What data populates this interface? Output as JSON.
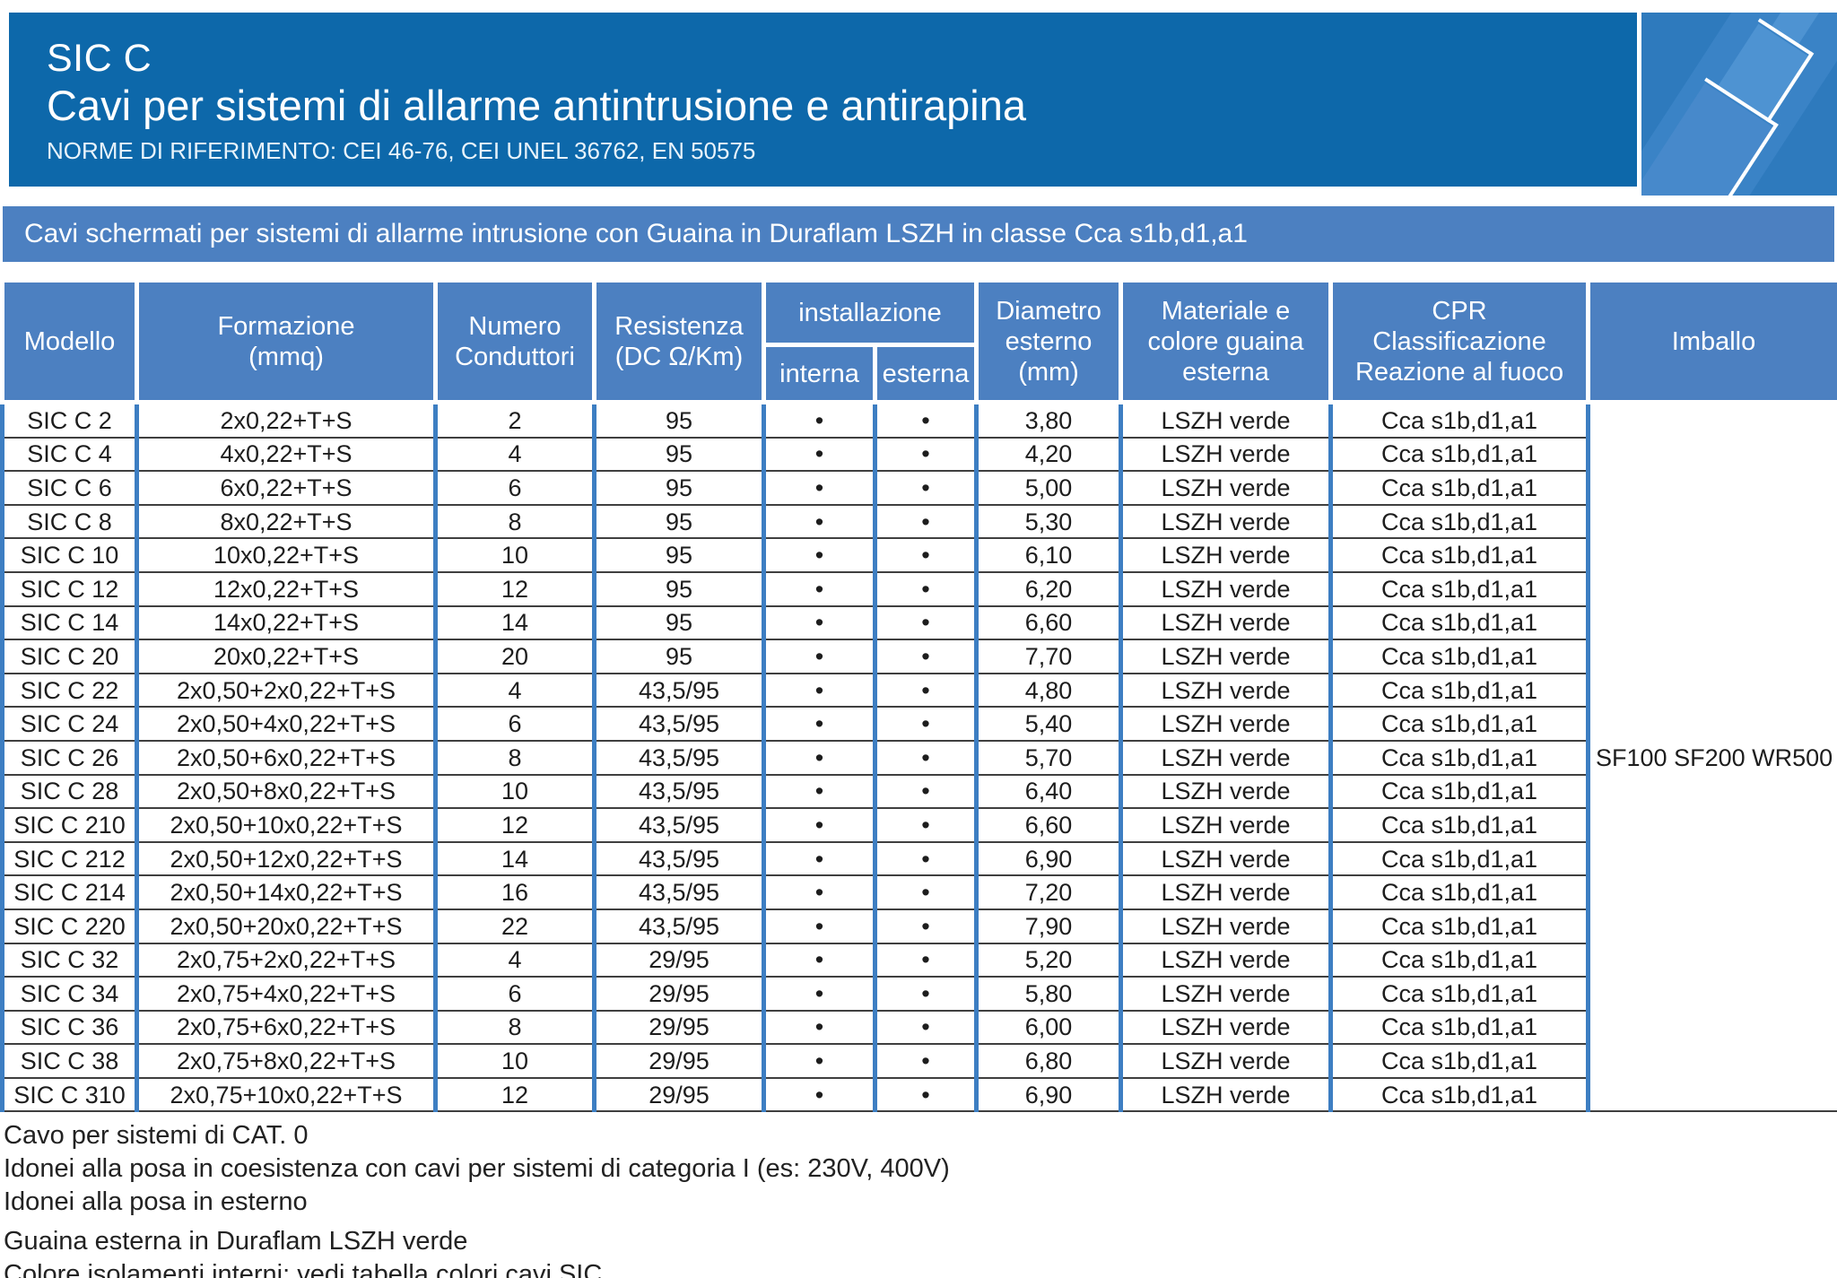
{
  "header": {
    "series": "SIC C",
    "title": "Cavi per sistemi di allarme antintrusione e antirapina",
    "norms": "NORME DI RIFERIMENTO: CEI 46-76, CEI UNEL 36762, EN 50575"
  },
  "banner": {
    "text": "Cavi schermati per sistemi di allarme intrusione con Guaina in Duraflam LSZH in classe Cca s1b,d1,a1"
  },
  "colors": {
    "header_dark_blue": "#0d68aa",
    "band_blue": "#4c80c1",
    "table_border_blue": "#3d7ec2",
    "art_square_blue": "#2e7abd",
    "art_cable_blue": "#4e93d2"
  },
  "table": {
    "headers": {
      "modello": "Modello",
      "formazione": "Formazione\n(mmq)",
      "numero": "Numero\nConduttori",
      "resistenza": "Resistenza\n(DC Ω/Km)",
      "installazione": "installazione",
      "interna": "interna",
      "esterna": "esterna",
      "diametro": "Diametro\nesterno\n(mm)",
      "materiale": "Materiale e\ncolore guaina\nesterna",
      "cpr": "CPR\nClassificazione\nReazione al fuoco",
      "imballo": "Imballo"
    },
    "dot": "•",
    "imballo_value": "SF100\nSF200\nWR500",
    "rows": [
      {
        "modello": "SIC C 2",
        "formazione": "2x0,22+T+S",
        "conduttori": "2",
        "resistenza": "95",
        "interna": true,
        "esterna": true,
        "diametro": "3,80",
        "materiale": "LSZH verde",
        "cpr": "Cca s1b,d1,a1"
      },
      {
        "modello": "SIC C 4",
        "formazione": "4x0,22+T+S",
        "conduttori": "4",
        "resistenza": "95",
        "interna": true,
        "esterna": true,
        "diametro": "4,20",
        "materiale": "LSZH verde",
        "cpr": "Cca s1b,d1,a1"
      },
      {
        "modello": "SIC C 6",
        "formazione": "6x0,22+T+S",
        "conduttori": "6",
        "resistenza": "95",
        "interna": true,
        "esterna": true,
        "diametro": "5,00",
        "materiale": "LSZH verde",
        "cpr": "Cca s1b,d1,a1"
      },
      {
        "modello": "SIC C 8",
        "formazione": "8x0,22+T+S",
        "conduttori": "8",
        "resistenza": "95",
        "interna": true,
        "esterna": true,
        "diametro": "5,30",
        "materiale": "LSZH verde",
        "cpr": "Cca s1b,d1,a1"
      },
      {
        "modello": "SIC C 10",
        "formazione": "10x0,22+T+S",
        "conduttori": "10",
        "resistenza": "95",
        "interna": true,
        "esterna": true,
        "diametro": "6,10",
        "materiale": "LSZH verde",
        "cpr": "Cca s1b,d1,a1"
      },
      {
        "modello": "SIC C 12",
        "formazione": "12x0,22+T+S",
        "conduttori": "12",
        "resistenza": "95",
        "interna": true,
        "esterna": true,
        "diametro": "6,20",
        "materiale": "LSZH verde",
        "cpr": "Cca s1b,d1,a1"
      },
      {
        "modello": "SIC C 14",
        "formazione": "14x0,22+T+S",
        "conduttori": "14",
        "resistenza": "95",
        "interna": true,
        "esterna": true,
        "diametro": "6,60",
        "materiale": "LSZH verde",
        "cpr": "Cca s1b,d1,a1"
      },
      {
        "modello": "SIC C 20",
        "formazione": "20x0,22+T+S",
        "conduttori": "20",
        "resistenza": "95",
        "interna": true,
        "esterna": true,
        "diametro": "7,70",
        "materiale": "LSZH verde",
        "cpr": "Cca s1b,d1,a1"
      },
      {
        "modello": "SIC C 22",
        "formazione": "2x0,50+2x0,22+T+S",
        "conduttori": "4",
        "resistenza": "43,5/95",
        "interna": true,
        "esterna": true,
        "diametro": "4,80",
        "materiale": "LSZH verde",
        "cpr": "Cca s1b,d1,a1"
      },
      {
        "modello": "SIC C 24",
        "formazione": "2x0,50+4x0,22+T+S",
        "conduttori": "6",
        "resistenza": "43,5/95",
        "interna": true,
        "esterna": true,
        "diametro": "5,40",
        "materiale": "LSZH verde",
        "cpr": "Cca s1b,d1,a1"
      },
      {
        "modello": "SIC C 26",
        "formazione": "2x0,50+6x0,22+T+S",
        "conduttori": "8",
        "resistenza": "43,5/95",
        "interna": true,
        "esterna": true,
        "diametro": "5,70",
        "materiale": "LSZH verde",
        "cpr": "Cca s1b,d1,a1"
      },
      {
        "modello": "SIC C 28",
        "formazione": "2x0,50+8x0,22+T+S",
        "conduttori": "10",
        "resistenza": "43,5/95",
        "interna": true,
        "esterna": true,
        "diametro": "6,40",
        "materiale": "LSZH verde",
        "cpr": "Cca s1b,d1,a1"
      },
      {
        "modello": "SIC C 210",
        "formazione": "2x0,50+10x0,22+T+S",
        "conduttori": "12",
        "resistenza": "43,5/95",
        "interna": true,
        "esterna": true,
        "diametro": "6,60",
        "materiale": "LSZH verde",
        "cpr": "Cca s1b,d1,a1"
      },
      {
        "modello": "SIC C 212",
        "formazione": "2x0,50+12x0,22+T+S",
        "conduttori": "14",
        "resistenza": "43,5/95",
        "interna": true,
        "esterna": true,
        "diametro": "6,90",
        "materiale": "LSZH verde",
        "cpr": "Cca s1b,d1,a1"
      },
      {
        "modello": "SIC C 214",
        "formazione": "2x0,50+14x0,22+T+S",
        "conduttori": "16",
        "resistenza": "43,5/95",
        "interna": true,
        "esterna": true,
        "diametro": "7,20",
        "materiale": "LSZH verde",
        "cpr": "Cca s1b,d1,a1"
      },
      {
        "modello": "SIC C 220",
        "formazione": "2x0,50+20x0,22+T+S",
        "conduttori": "22",
        "resistenza": "43,5/95",
        "interna": true,
        "esterna": true,
        "diametro": "7,90",
        "materiale": "LSZH verde",
        "cpr": "Cca s1b,d1,a1"
      },
      {
        "modello": "SIC C 32",
        "formazione": "2x0,75+2x0,22+T+S",
        "conduttori": "4",
        "resistenza": "29/95",
        "interna": true,
        "esterna": true,
        "diametro": "5,20",
        "materiale": "LSZH verde",
        "cpr": "Cca s1b,d1,a1"
      },
      {
        "modello": "SIC C 34",
        "formazione": "2x0,75+4x0,22+T+S",
        "conduttori": "6",
        "resistenza": "29/95",
        "interna": true,
        "esterna": true,
        "diametro": "5,80",
        "materiale": "LSZH verde",
        "cpr": "Cca s1b,d1,a1"
      },
      {
        "modello": "SIC C 36",
        "formazione": "2x0,75+6x0,22+T+S",
        "conduttori": "8",
        "resistenza": "29/95",
        "interna": true,
        "esterna": true,
        "diametro": "6,00",
        "materiale": "LSZH verde",
        "cpr": "Cca s1b,d1,a1"
      },
      {
        "modello": "SIC C 38",
        "formazione": "2x0,75+8x0,22+T+S",
        "conduttori": "10",
        "resistenza": "29/95",
        "interna": true,
        "esterna": true,
        "diametro": "6,80",
        "materiale": "LSZH verde",
        "cpr": "Cca s1b,d1,a1"
      },
      {
        "modello": "SIC C 310",
        "formazione": "2x0,75+10x0,22+T+S",
        "conduttori": "12",
        "resistenza": "29/95",
        "interna": true,
        "esterna": true,
        "diametro": "6,90",
        "materiale": "LSZH verde",
        "cpr": "Cca s1b,d1,a1"
      }
    ]
  },
  "notes": [
    "Cavo per sistemi di CAT. 0",
    "Idonei alla posa in coesistenza con cavi per sistemi di categoria I (es: 230V, 400V)",
    "Idonei alla posa in esterno",
    "Guaina esterna in Duraflam LSZH verde",
    "Colore isolamenti interni: vedi tabella colori cavi SIC"
  ]
}
